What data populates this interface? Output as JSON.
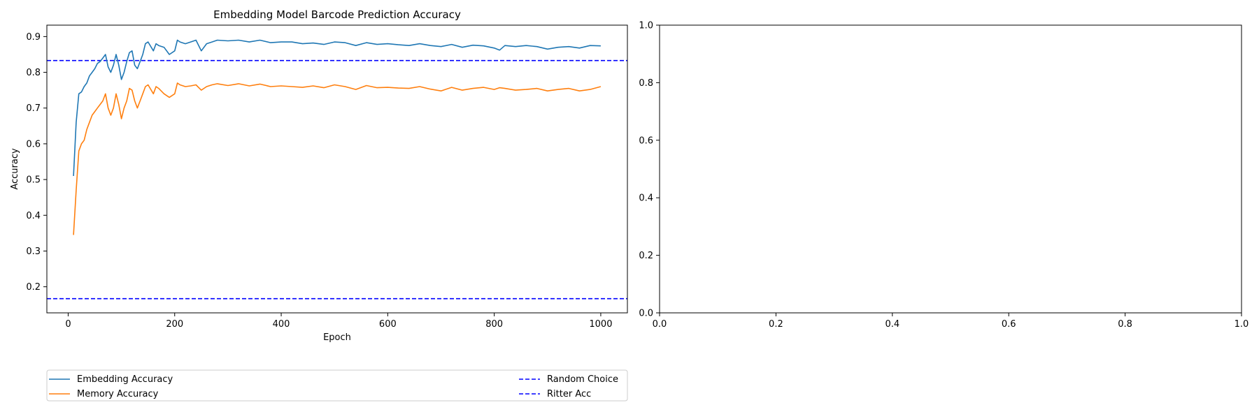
{
  "chart_data": [
    {
      "type": "line",
      "title": "Embedding Model Barcode Prediction Accuracy",
      "xlabel": "Epoch",
      "ylabel": "Accuracy",
      "xlim": [
        -40,
        1050
      ],
      "ylim": [
        0.127,
        0.932
      ],
      "xticks": [
        0,
        200,
        400,
        600,
        800,
        1000
      ],
      "yticks": [
        0.2,
        0.3,
        0.4,
        0.5,
        0.6,
        0.7,
        0.8,
        0.9
      ],
      "grid": false,
      "legend_position": "below plot",
      "series": [
        {
          "name": "Embedding Accuracy",
          "color": "#1f77b4",
          "style": "solid",
          "x": [
            10,
            15,
            20,
            25,
            30,
            35,
            40,
            45,
            50,
            55,
            60,
            65,
            70,
            75,
            80,
            85,
            90,
            95,
            100,
            105,
            110,
            115,
            120,
            125,
            130,
            135,
            140,
            145,
            150,
            160,
            165,
            170,
            180,
            190,
            200,
            205,
            210,
            220,
            230,
            240,
            250,
            260,
            270,
            280,
            300,
            320,
            340,
            360,
            380,
            400,
            420,
            440,
            460,
            480,
            500,
            520,
            540,
            560,
            580,
            600,
            620,
            640,
            660,
            680,
            700,
            720,
            740,
            760,
            780,
            800,
            810,
            820,
            840,
            860,
            880,
            900,
            920,
            940,
            960,
            980,
            1000
          ],
          "values": [
            0.51,
            0.66,
            0.74,
            0.745,
            0.76,
            0.77,
            0.79,
            0.8,
            0.81,
            0.825,
            0.83,
            0.84,
            0.85,
            0.815,
            0.8,
            0.82,
            0.85,
            0.82,
            0.78,
            0.8,
            0.83,
            0.855,
            0.86,
            0.82,
            0.81,
            0.83,
            0.85,
            0.88,
            0.885,
            0.86,
            0.88,
            0.875,
            0.87,
            0.85,
            0.86,
            0.89,
            0.885,
            0.88,
            0.885,
            0.89,
            0.86,
            0.88,
            0.885,
            0.89,
            0.888,
            0.89,
            0.885,
            0.89,
            0.883,
            0.885,
            0.885,
            0.88,
            0.882,
            0.878,
            0.885,
            0.883,
            0.875,
            0.883,
            0.878,
            0.88,
            0.877,
            0.875,
            0.88,
            0.875,
            0.872,
            0.878,
            0.87,
            0.876,
            0.874,
            0.868,
            0.862,
            0.875,
            0.872,
            0.875,
            0.872,
            0.865,
            0.87,
            0.872,
            0.868,
            0.875,
            0.874
          ]
        },
        {
          "name": "Memory Accuracy",
          "color": "#ff7f0e",
          "style": "solid",
          "x": [
            10,
            15,
            20,
            25,
            30,
            35,
            40,
            45,
            50,
            55,
            60,
            65,
            70,
            75,
            80,
            85,
            90,
            95,
            100,
            105,
            110,
            115,
            120,
            125,
            130,
            135,
            140,
            145,
            150,
            160,
            165,
            170,
            180,
            190,
            200,
            205,
            210,
            220,
            230,
            240,
            250,
            260,
            270,
            280,
            300,
            320,
            340,
            360,
            380,
            400,
            420,
            440,
            460,
            480,
            500,
            520,
            540,
            560,
            580,
            600,
            620,
            640,
            660,
            680,
            700,
            720,
            740,
            760,
            780,
            800,
            810,
            820,
            840,
            860,
            880,
            900,
            920,
            940,
            960,
            980,
            1000
          ],
          "values": [
            0.345,
            0.47,
            0.58,
            0.6,
            0.61,
            0.64,
            0.66,
            0.68,
            0.69,
            0.7,
            0.71,
            0.72,
            0.74,
            0.7,
            0.68,
            0.7,
            0.74,
            0.71,
            0.67,
            0.7,
            0.72,
            0.755,
            0.75,
            0.72,
            0.7,
            0.72,
            0.74,
            0.76,
            0.765,
            0.74,
            0.76,
            0.755,
            0.74,
            0.73,
            0.74,
            0.77,
            0.765,
            0.76,
            0.762,
            0.765,
            0.75,
            0.76,
            0.765,
            0.768,
            0.763,
            0.768,
            0.762,
            0.767,
            0.76,
            0.762,
            0.76,
            0.758,
            0.762,
            0.757,
            0.765,
            0.76,
            0.752,
            0.763,
            0.757,
            0.758,
            0.756,
            0.755,
            0.76,
            0.753,
            0.748,
            0.758,
            0.75,
            0.755,
            0.758,
            0.752,
            0.757,
            0.755,
            0.75,
            0.752,
            0.755,
            0.748,
            0.752,
            0.755,
            0.748,
            0.752,
            0.76
          ]
        }
      ],
      "hlines": [
        {
          "name": "Random Choice",
          "y": 0.1667,
          "color": "#0000ff",
          "style": "dashed"
        },
        {
          "name": "Ritter Acc",
          "y": 0.833,
          "color": "#0000ff",
          "style": "dashed"
        }
      ],
      "legend": {
        "entries": [
          {
            "label": "Embedding Accuracy",
            "color": "#1f77b4",
            "style": "solid"
          },
          {
            "label": "Memory Accuracy",
            "color": "#ff7f0e",
            "style": "solid"
          },
          {
            "label": "Random Choice",
            "color": "#0000ff",
            "style": "dashed"
          },
          {
            "label": "Ritter Acc",
            "color": "#0000ff",
            "style": "dashed"
          }
        ]
      }
    },
    {
      "type": "line",
      "title": "",
      "xlabel": "",
      "ylabel": "",
      "xlim": [
        0,
        1
      ],
      "ylim": [
        0,
        1
      ],
      "xticks": [
        0.0,
        0.2,
        0.4,
        0.6,
        0.8,
        1.0
      ],
      "yticks": [
        0.0,
        0.2,
        0.4,
        0.6,
        0.8,
        1.0
      ],
      "tick_labels_x": [
        "0.0",
        "0.2",
        "0.4",
        "0.6",
        "0.8",
        "1.0"
      ],
      "tick_labels_y": [
        "0.0",
        "0.2",
        "0.4",
        "0.6",
        "0.8",
        "1.0"
      ],
      "grid": false,
      "series": []
    }
  ]
}
